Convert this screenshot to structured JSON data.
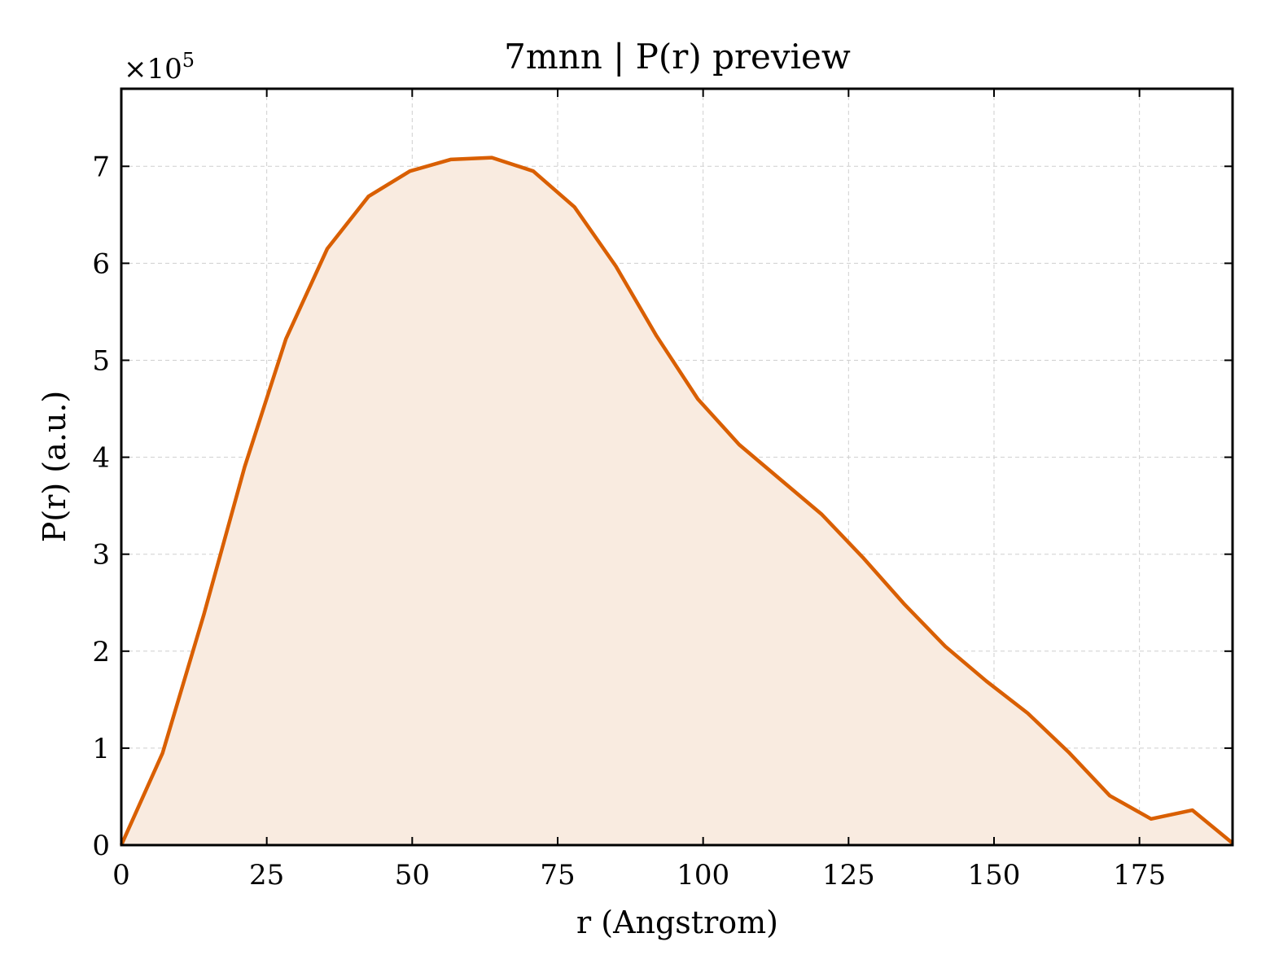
{
  "chart_data": {
    "type": "area",
    "title": "7mnn | P(r) preview",
    "xlabel": "r (Angstrom)",
    "ylabel": "P(r) (a.u.)",
    "y_scale_label": "×10",
    "y_scale_exponent": "5",
    "xlim": [
      0,
      191
    ],
    "ylim": [
      0,
      7.8
    ],
    "x_ticks": [
      0,
      25,
      50,
      75,
      100,
      125,
      150,
      175
    ],
    "x_tick_labels": [
      "0",
      "25",
      "50",
      "75",
      "100",
      "125",
      "150",
      "175"
    ],
    "y_ticks": [
      0,
      1,
      2,
      3,
      4,
      5,
      6,
      7
    ],
    "y_tick_labels": [
      "0",
      "1",
      "2",
      "3",
      "4",
      "5",
      "6",
      "7"
    ],
    "grid": true,
    "series": [
      {
        "color": "#d95f02",
        "fill_color": "#f9ebe0",
        "x": [
          0,
          7.1,
          14.2,
          21.2,
          28.3,
          35.4,
          42.5,
          49.6,
          56.6,
          63.7,
          70.8,
          77.9,
          85.0,
          92.0,
          99.1,
          106.2,
          113.3,
          120.4,
          127.4,
          134.5,
          141.6,
          148.7,
          155.8,
          162.8,
          169.9,
          177.0,
          184.1,
          191.0
        ],
        "y": [
          0,
          0.95,
          2.38,
          3.9,
          5.22,
          6.15,
          6.69,
          6.95,
          7.07,
          7.09,
          6.95,
          6.58,
          5.97,
          5.25,
          4.6,
          4.13,
          3.77,
          3.41,
          2.97,
          2.49,
          2.05,
          1.69,
          1.36,
          0.96,
          0.51,
          0.27,
          0.36,
          0.02
        ]
      }
    ]
  }
}
